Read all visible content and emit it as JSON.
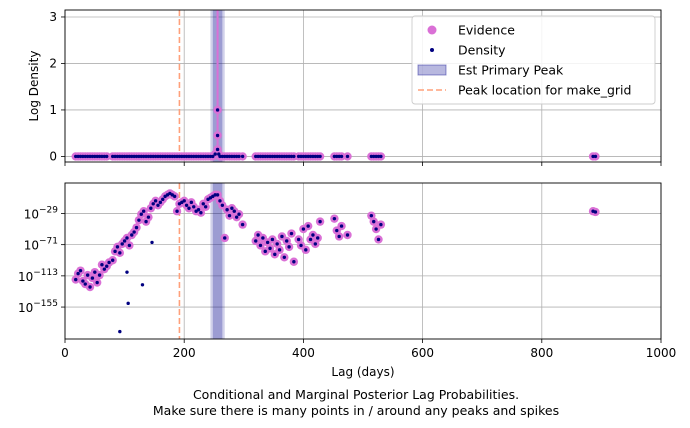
{
  "figure": {
    "caption_line1": "Conditional and Marginal Posterior Lag Probabilities.",
    "caption_line2": "Make sure there is many points in / around any peaks and spikes"
  },
  "colors": {
    "evidence": "#da70d6",
    "density": "#000080",
    "peak_band": "#00008b",
    "peak_line": "#9370db",
    "make_grid_line": "#ffa07a",
    "grid": "#b0b0b0"
  },
  "chart_data": [
    {
      "type": "scatter",
      "panel": "top",
      "title": "",
      "xlabel": "",
      "ylabel": "Log Density",
      "xlim": [
        0,
        1000
      ],
      "ylim": [
        -0.12,
        3.15
      ],
      "yticks": [
        0,
        1,
        2,
        3
      ],
      "ytick_labels": [
        "0",
        "1",
        "2",
        "3"
      ],
      "grid": true,
      "legend": {
        "placement": "top-right",
        "entries": [
          {
            "label": "Evidence",
            "kind": "evidence-marker"
          },
          {
            "label": "Density",
            "kind": "density-marker"
          },
          {
            "label": "Est Primary Peak",
            "kind": "band"
          },
          {
            "label": "Peak location for make_grid",
            "kind": "dashed-line"
          }
        ]
      },
      "primary_peak": {
        "band_x": [
          244,
          268
        ],
        "inner_band_x": [
          248,
          264
        ],
        "spike_x": 256,
        "spike_top": 3.15
      },
      "make_grid_line_x": 192,
      "series": [
        {
          "name": "Evidence",
          "values_note": "near zero everywhere except spike at lag ~256",
          "x": [
            18,
            22,
            26,
            30,
            34,
            38,
            42,
            46,
            50,
            54,
            58,
            62,
            66,
            70,
            80,
            84,
            88,
            92,
            96,
            100,
            104,
            108,
            112,
            116,
            120,
            124,
            128,
            132,
            136,
            140,
            144,
            148,
            152,
            156,
            160,
            164,
            168,
            172,
            176,
            180,
            184,
            188,
            192,
            196,
            200,
            204,
            208,
            212,
            216,
            220,
            224,
            228,
            232,
            236,
            240,
            244,
            248,
            252,
            256,
            256,
            256,
            258,
            260,
            264,
            268,
            272,
            276,
            280,
            284,
            288,
            292,
            298,
            320,
            324,
            328,
            332,
            336,
            340,
            344,
            348,
            352,
            356,
            360,
            364,
            368,
            372,
            376,
            380,
            384,
            392,
            396,
            400,
            404,
            408,
            412,
            416,
            420,
            424,
            428,
            452,
            456,
            460,
            464,
            474,
            514,
            518,
            522,
            526,
            530,
            886,
            890
          ],
          "y": [
            0,
            0,
            0,
            0,
            0,
            0,
            0,
            0,
            0,
            0,
            0,
            0,
            0,
            0,
            0,
            0,
            0,
            0,
            0,
            0,
            0,
            0,
            0,
            0,
            0,
            0,
            0,
            0,
            0,
            0,
            0,
            0,
            0,
            0,
            0,
            0,
            0,
            0,
            0,
            0,
            0,
            0,
            0,
            0,
            0,
            0,
            0,
            0,
            0,
            0,
            0,
            0,
            0,
            0,
            0,
            0,
            0,
            0.05,
            0.45,
            1.0,
            0.15,
            0.05,
            0,
            0,
            0,
            0,
            0,
            0,
            0,
            0,
            0,
            0,
            0,
            0,
            0,
            0,
            0,
            0,
            0,
            0,
            0,
            0,
            0,
            0,
            0,
            0,
            0,
            0,
            0,
            0,
            0,
            0,
            0,
            0,
            0,
            0,
            0,
            0,
            0,
            0,
            0,
            0,
            0,
            0,
            0,
            0,
            0,
            0,
            0,
            0,
            0
          ]
        },
        {
          "name": "Density",
          "x": [
            18,
            22,
            26,
            30,
            34,
            38,
            42,
            46,
            50,
            54,
            58,
            62,
            66,
            70,
            80,
            84,
            88,
            92,
            96,
            100,
            104,
            108,
            112,
            116,
            120,
            124,
            128,
            132,
            136,
            140,
            144,
            148,
            152,
            156,
            160,
            164,
            168,
            172,
            176,
            180,
            184,
            188,
            192,
            196,
            200,
            204,
            208,
            212,
            216,
            220,
            224,
            228,
            232,
            236,
            240,
            244,
            248,
            252,
            256,
            256,
            256,
            258,
            260,
            264,
            268,
            272,
            276,
            280,
            284,
            288,
            292,
            298,
            320,
            324,
            328,
            332,
            336,
            340,
            344,
            348,
            352,
            356,
            360,
            364,
            368,
            372,
            376,
            380,
            384,
            392,
            396,
            400,
            404,
            408,
            412,
            416,
            420,
            424,
            428,
            452,
            456,
            460,
            464,
            474,
            514,
            518,
            522,
            526,
            530,
            886,
            890
          ],
          "y": [
            0,
            0,
            0,
            0,
            0,
            0,
            0,
            0,
            0,
            0,
            0,
            0,
            0,
            0,
            0,
            0,
            0,
            0,
            0,
            0,
            0,
            0,
            0,
            0,
            0,
            0,
            0,
            0,
            0,
            0,
            0,
            0,
            0,
            0,
            0,
            0,
            0,
            0,
            0,
            0,
            0,
            0,
            0,
            0,
            0,
            0,
            0,
            0,
            0,
            0,
            0,
            0,
            0,
            0,
            0,
            0,
            0,
            0.05,
            0.45,
            1.0,
            0.15,
            0.05,
            0,
            0,
            0,
            0,
            0,
            0,
            0,
            0,
            0,
            0,
            0,
            0,
            0,
            0,
            0,
            0,
            0,
            0,
            0,
            0,
            0,
            0,
            0,
            0,
            0,
            0,
            0,
            0,
            0,
            0,
            0,
            0,
            0,
            0,
            0,
            0,
            0,
            0,
            0,
            0,
            0,
            0,
            0,
            0,
            0,
            0,
            0,
            0,
            0
          ]
        }
      ]
    },
    {
      "type": "scatter",
      "panel": "bottom",
      "title": "",
      "xlabel": "Lag (days)",
      "ylabel": "",
      "xlim": [
        0,
        1000
      ],
      "xticks": [
        0,
        200,
        400,
        600,
        800,
        1000
      ],
      "xtick_labels": [
        "0",
        "200",
        "400",
        "600",
        "800",
        "1000"
      ],
      "yscale": "log",
      "ylim_exp": [
        -198,
        12
      ],
      "ytick_exps": [
        -155,
        -113,
        -71,
        -29
      ],
      "ytick_labels": [
        {
          "base": "10",
          "exp": "−155"
        },
        {
          "base": "10",
          "exp": "−113"
        },
        {
          "base": "10",
          "exp": "−71"
        },
        {
          "base": "10",
          "exp": "−29"
        }
      ],
      "grid": true,
      "primary_peak": {
        "band_x": [
          244,
          268
        ],
        "inner_band_x": [
          248,
          264
        ]
      },
      "make_grid_line_x": 192,
      "series": [
        {
          "name": "Evidence",
          "values_are": "log10 of value",
          "x": [
            18,
            22,
            26,
            30,
            34,
            38,
            42,
            46,
            50,
            54,
            58,
            62,
            66,
            70,
            74,
            80,
            84,
            88,
            92,
            96,
            100,
            104,
            108,
            112,
            116,
            120,
            124,
            128,
            132,
            136,
            140,
            144,
            148,
            152,
            156,
            160,
            164,
            168,
            172,
            176,
            180,
            184,
            188,
            192,
            196,
            200,
            204,
            208,
            212,
            216,
            220,
            224,
            228,
            232,
            236,
            240,
            244,
            248,
            252,
            256,
            260,
            264,
            268,
            272,
            276,
            280,
            284,
            288,
            292,
            298,
            320,
            324,
            328,
            332,
            336,
            340,
            344,
            348,
            352,
            356,
            360,
            364,
            368,
            372,
            376,
            380,
            384,
            392,
            396,
            400,
            404,
            408,
            412,
            416,
            420,
            424,
            428,
            452,
            456,
            460,
            464,
            474,
            514,
            518,
            522,
            526,
            530,
            886,
            890
          ],
          "y": [
            -118,
            -110,
            -106,
            -120,
            -124,
            -112,
            -128,
            -116,
            -108,
            -122,
            -112,
            -98,
            -104,
            -100,
            -95,
            -92,
            -80,
            -74,
            -82,
            -70,
            -66,
            -62,
            -72,
            -58,
            -54,
            -48,
            -38,
            -30,
            -26,
            -40,
            -34,
            -22,
            -16,
            -12,
            -18,
            -14,
            -10,
            -6,
            -4,
            -2,
            -4,
            -6,
            -26,
            -16,
            -14,
            -12,
            -18,
            -22,
            -14,
            -20,
            -26,
            -24,
            -28,
            -16,
            -20,
            -10,
            -8,
            -6,
            -4,
            -4,
            -12,
            -18,
            -62,
            -24,
            -32,
            -22,
            -26,
            -34,
            -30,
            -44,
            -66,
            -58,
            -72,
            -62,
            -80,
            -68,
            -76,
            -64,
            -84,
            -70,
            -78,
            -60,
            -88,
            -66,
            -74,
            -56,
            -94,
            -64,
            -72,
            -50,
            -78,
            -46,
            -64,
            -58,
            -70,
            -62,
            -40,
            -36,
            -52,
            -60,
            -46,
            -58,
            -32,
            -40,
            -50,
            -64,
            -44,
            -26,
            -27
          ]
        },
        {
          "name": "Density",
          "values_are": "log10 of value",
          "x": [
            18,
            22,
            26,
            30,
            34,
            38,
            42,
            46,
            50,
            54,
            58,
            62,
            66,
            70,
            74,
            80,
            84,
            88,
            92,
            96,
            100,
            104,
            108,
            112,
            116,
            120,
            124,
            128,
            132,
            136,
            140,
            144,
            148,
            152,
            156,
            160,
            164,
            168,
            172,
            176,
            180,
            184,
            188,
            192,
            196,
            200,
            204,
            208,
            212,
            216,
            220,
            224,
            228,
            232,
            236,
            240,
            244,
            248,
            252,
            256,
            260,
            264,
            268,
            272,
            276,
            280,
            284,
            288,
            292,
            298,
            320,
            324,
            328,
            332,
            336,
            340,
            344,
            348,
            352,
            356,
            360,
            364,
            368,
            372,
            376,
            380,
            384,
            392,
            396,
            400,
            404,
            408,
            412,
            416,
            420,
            424,
            428,
            452,
            456,
            460,
            464,
            474,
            514,
            518,
            522,
            526,
            530,
            886,
            890,
            92,
            104,
            106,
            130,
            146
          ],
          "y": [
            -118,
            -110,
            -106,
            -120,
            -124,
            -112,
            -128,
            -116,
            -108,
            -122,
            -112,
            -98,
            -104,
            -100,
            -95,
            -92,
            -80,
            -74,
            -82,
            -70,
            -66,
            -62,
            -72,
            -58,
            -54,
            -48,
            -38,
            -30,
            -26,
            -40,
            -34,
            -22,
            -16,
            -12,
            -18,
            -14,
            -10,
            -6,
            -4,
            -2,
            -4,
            -6,
            -26,
            -16,
            -14,
            -12,
            -18,
            -22,
            -14,
            -20,
            -26,
            -24,
            -28,
            -16,
            -20,
            -10,
            -8,
            -6,
            -4,
            -4,
            -12,
            -18,
            -62,
            -24,
            -32,
            -22,
            -26,
            -34,
            -30,
            -44,
            -66,
            -58,
            -72,
            -62,
            -80,
            -68,
            -76,
            -64,
            -84,
            -70,
            -78,
            -60,
            -88,
            -66,
            -74,
            -56,
            -94,
            -64,
            -72,
            -50,
            -78,
            -46,
            -64,
            -58,
            -70,
            -62,
            -40,
            -36,
            -52,
            -60,
            -46,
            -58,
            -32,
            -40,
            -50,
            -64,
            -44,
            -26,
            -27,
            -188,
            -108,
            -150,
            -125,
            -68
          ]
        }
      ]
    }
  ]
}
